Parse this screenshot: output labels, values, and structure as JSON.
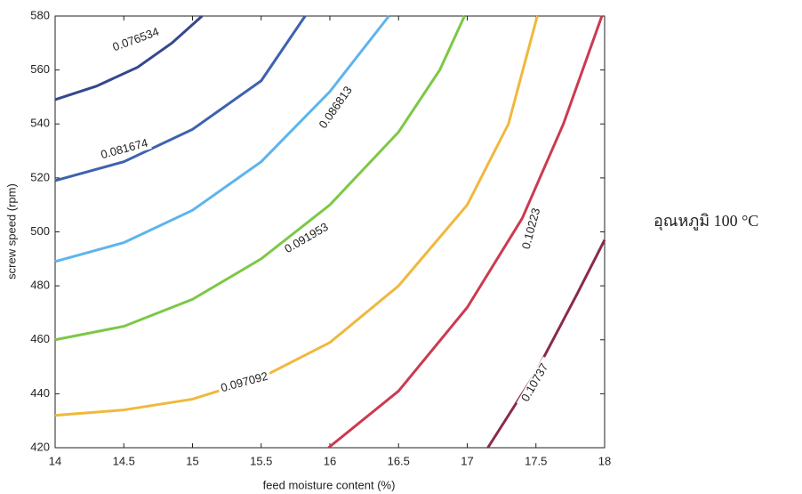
{
  "chart_data": {
    "type": "contour",
    "x_label": "feed moisture content (%)",
    "y_label": "screw speed (rpm)",
    "annotation": "อุณหภูมิ 100 °C",
    "xlim": [
      14,
      18
    ],
    "ylim": [
      420,
      580
    ],
    "xticks": [
      14,
      14.5,
      15,
      15.5,
      16,
      16.5,
      17,
      17.5,
      18
    ],
    "yticks": [
      420,
      440,
      460,
      480,
      500,
      520,
      540,
      560,
      580
    ],
    "series": [
      {
        "name": "0.076534",
        "color": "#34478f",
        "x": [
          14,
          14.3,
          14.6,
          14.85,
          15.07
        ],
        "values": [
          549,
          554,
          561,
          570,
          580
        ]
      },
      {
        "name": "0.081674",
        "color": "#3d62b0",
        "x": [
          14,
          14.5,
          15,
          15.5,
          15.82
        ],
        "values": [
          519,
          526,
          538,
          556,
          580
        ]
      },
      {
        "name": "0.086813",
        "color": "#5eb4ec",
        "x": [
          14,
          14.5,
          15,
          15.5,
          16,
          16.43
        ],
        "values": [
          489,
          496,
          508,
          526,
          552,
          580
        ]
      },
      {
        "name": "0.091953",
        "color": "#7cc846",
        "x": [
          14,
          14.5,
          15,
          15.5,
          16,
          16.5,
          16.8,
          16.98
        ],
        "values": [
          460,
          465,
          475,
          490,
          510,
          537,
          560,
          580
        ]
      },
      {
        "name": "0.097092",
        "color": "#f0b83c",
        "x": [
          14,
          14.5,
          15,
          15.5,
          16,
          16.5,
          17,
          17.3,
          17.51
        ],
        "values": [
          432,
          434,
          438,
          446,
          459,
          480,
          510,
          540,
          580
        ]
      },
      {
        "name": "0.10223",
        "color": "#cc3a50",
        "x": [
          15.99,
          16.5,
          17,
          17.4,
          17.7,
          17.98
        ],
        "values": [
          420,
          441,
          472,
          505,
          540,
          580
        ]
      },
      {
        "name": "0.10737",
        "color": "#8a2a4a",
        "x": [
          17.15,
          17.5,
          17.8,
          18
        ],
        "values": [
          420,
          448,
          477,
          497
        ]
      }
    ]
  }
}
